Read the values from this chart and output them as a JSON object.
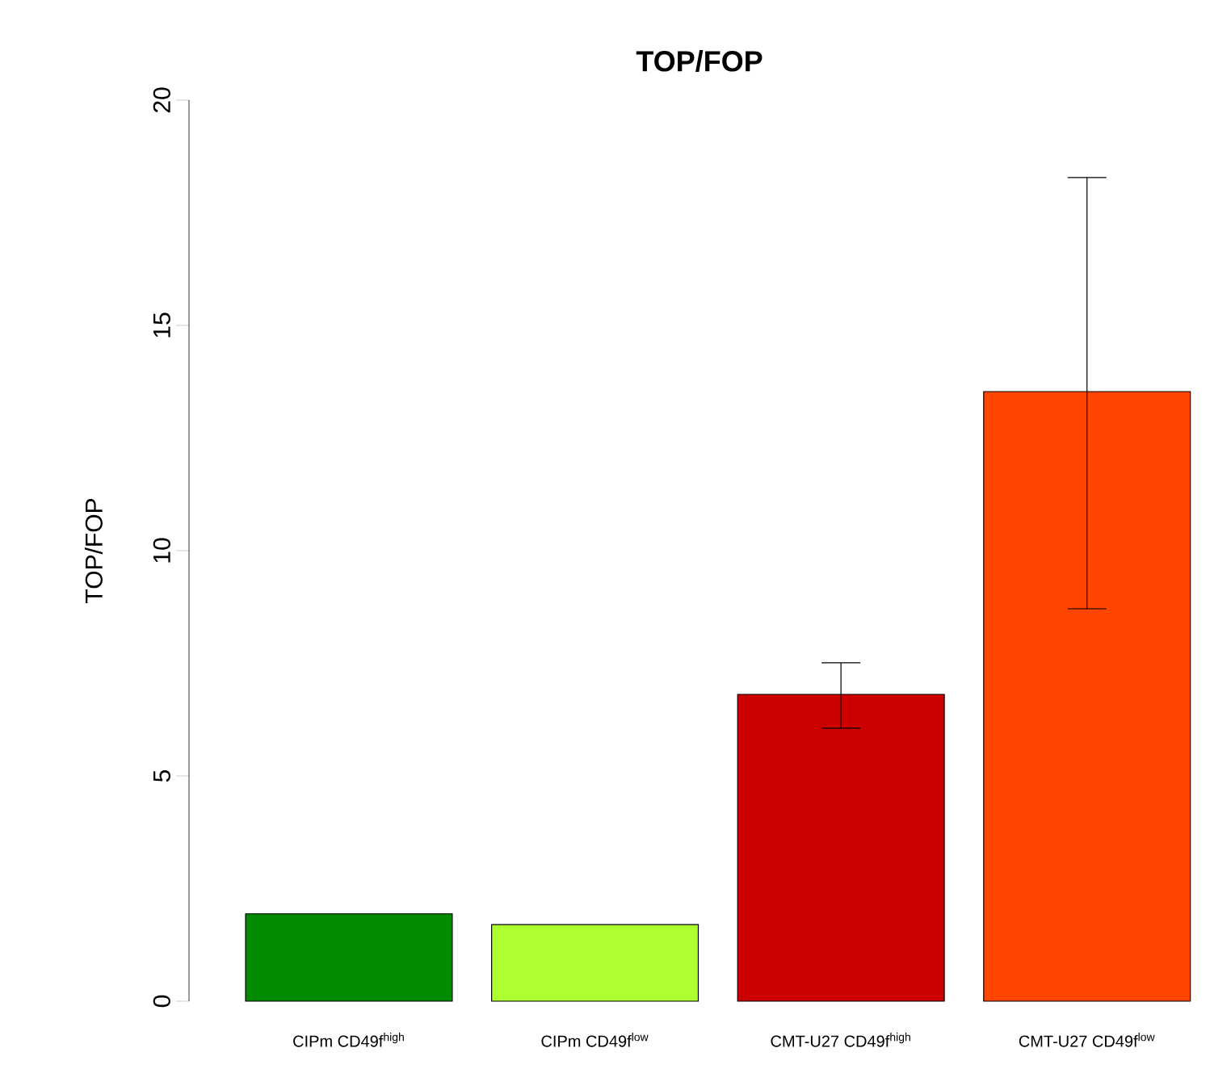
{
  "chart_data": {
    "type": "bar",
    "title": "TOP/FOP",
    "ylabel": "TOP/FOP",
    "categories": [
      "CIPm CD49f$^{high}$",
      "CIPm CD49f$^{low}$",
      "CMT-U27 CD49f$^{high}$",
      "CMT-U27 CD49f$^{low}$"
    ],
    "values": [
      1.94,
      1.7,
      6.81,
      13.53
    ],
    "errors": [
      null,
      null,
      [
        6.06,
        7.51
      ],
      [
        8.71,
        18.28
      ]
    ],
    "colors": [
      "#008b00",
      "#adff2f",
      "#cd0000",
      "#ff4500"
    ],
    "ylim": [
      0,
      20
    ],
    "yticks": [
      0,
      5,
      10,
      15,
      20
    ],
    "grid": false
  }
}
